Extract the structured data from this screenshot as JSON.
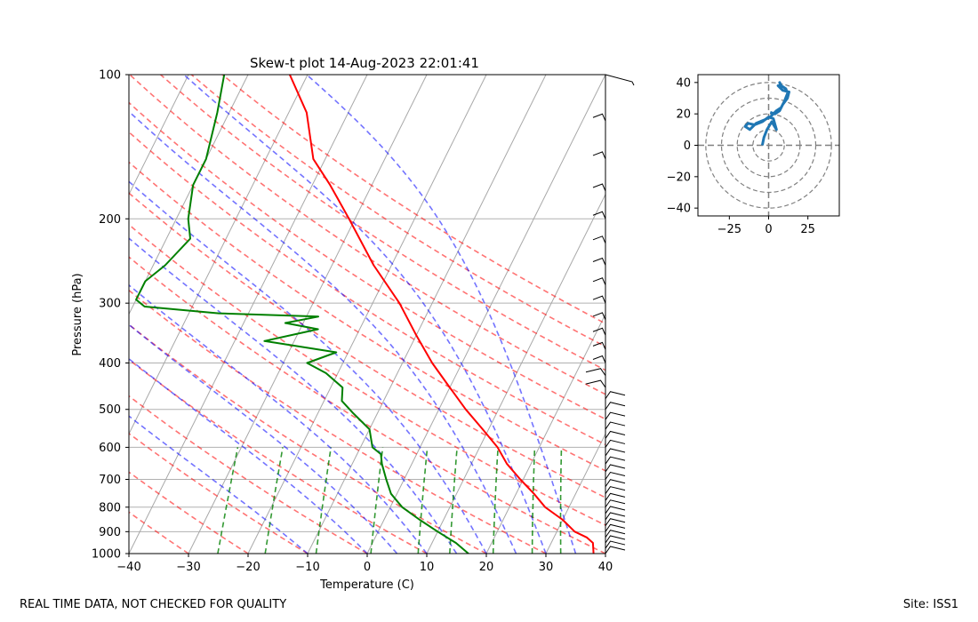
{
  "footer": {
    "disclaimer": "REAL TIME DATA, NOT CHECKED FOR QUALITY",
    "site": "Site: ISS1"
  },
  "colors": {
    "temperature": "#ff0000",
    "dewpoint": "#008000",
    "dry_adiabat": "#ff0000",
    "moist_adiabat": "#0000ff",
    "mixing_ratio": "#008000",
    "isotherm": "#808080",
    "hodograph_trace": "#1f77b4"
  },
  "chart_data": [
    {
      "type": "skew-t",
      "title": "Skew-t plot 14-Aug-2023 22:01:41",
      "xlabel": "Temperature (C)",
      "ylabel": "Pressure (hPa)",
      "xlim": [
        -40,
        40
      ],
      "ylim": [
        1000,
        100
      ],
      "x_ticks": [
        -40,
        -30,
        -20,
        -10,
        0,
        10,
        20,
        30,
        40
      ],
      "y_ticks": [
        100,
        200,
        300,
        400,
        500,
        600,
        700,
        800,
        900,
        1000
      ],
      "grid": true,
      "temperature_profile": [
        [
          1000,
          38
        ],
        [
          950,
          37
        ],
        [
          925,
          35.5
        ],
        [
          900,
          33
        ],
        [
          850,
          30
        ],
        [
          800,
          26
        ],
        [
          750,
          23
        ],
        [
          700,
          19.5
        ],
        [
          650,
          16
        ],
        [
          600,
          13
        ],
        [
          550,
          9
        ],
        [
          500,
          4.5
        ],
        [
          450,
          0
        ],
        [
          400,
          -5
        ],
        [
          350,
          -10
        ],
        [
          300,
          -15.5
        ],
        [
          250,
          -23
        ],
        [
          200,
          -31
        ],
        [
          170,
          -37
        ],
        [
          150,
          -42
        ],
        [
          120,
          -47
        ],
        [
          100,
          -53
        ]
      ],
      "dewpoint_profile": [
        [
          1000,
          17
        ],
        [
          950,
          14
        ],
        [
          900,
          10
        ],
        [
          850,
          6
        ],
        [
          800,
          2
        ],
        [
          750,
          -1
        ],
        [
          700,
          -3
        ],
        [
          650,
          -5
        ],
        [
          620,
          -6
        ],
        [
          600,
          -8
        ],
        [
          550,
          -10
        ],
        [
          510,
          -14
        ],
        [
          480,
          -17
        ],
        [
          450,
          -18
        ],
        [
          420,
          -22
        ],
        [
          400,
          -26
        ],
        [
          380,
          -22
        ],
        [
          360,
          -35
        ],
        [
          340,
          -27
        ],
        [
          330,
          -33
        ],
        [
          320,
          -28
        ],
        [
          315,
          -45
        ],
        [
          305,
          -58
        ],
        [
          295,
          -60
        ],
        [
          270,
          -60
        ],
        [
          250,
          -58
        ],
        [
          220,
          -56
        ],
        [
          200,
          -58
        ],
        [
          170,
          -60
        ],
        [
          150,
          -60
        ],
        [
          120,
          -62
        ],
        [
          100,
          -64
        ]
      ],
      "wind_barbs_present": true
    },
    {
      "type": "hodograph",
      "xlim": [
        -45,
        45
      ],
      "ylim": [
        -45,
        45
      ],
      "x_ticks": [
        -25,
        0,
        25
      ],
      "y_ticks": [
        40,
        20,
        0,
        -20,
        -40
      ],
      "rings": [
        10,
        20,
        30,
        40
      ],
      "trace_uv": [
        [
          -4,
          0
        ],
        [
          -3,
          5
        ],
        [
          -1,
          10
        ],
        [
          2,
          15
        ],
        [
          5,
          10
        ],
        [
          3,
          17
        ],
        [
          0,
          18
        ],
        [
          -4,
          15
        ],
        [
          -9,
          13
        ],
        [
          -13,
          14
        ],
        [
          -15,
          12
        ],
        [
          -12,
          10
        ],
        [
          -8,
          14
        ],
        [
          -3,
          16
        ],
        [
          1,
          18
        ],
        [
          5,
          22
        ],
        [
          8,
          24
        ],
        [
          10,
          28
        ],
        [
          12,
          33
        ],
        [
          11,
          36
        ],
        [
          8,
          38
        ],
        [
          7,
          40
        ],
        [
          8,
          37
        ],
        [
          6,
          38
        ],
        [
          9,
          35
        ],
        [
          13,
          34
        ],
        [
          12,
          30
        ],
        [
          9,
          26
        ],
        [
          7,
          22
        ],
        [
          4,
          20
        ],
        [
          1,
          21
        ]
      ]
    }
  ]
}
